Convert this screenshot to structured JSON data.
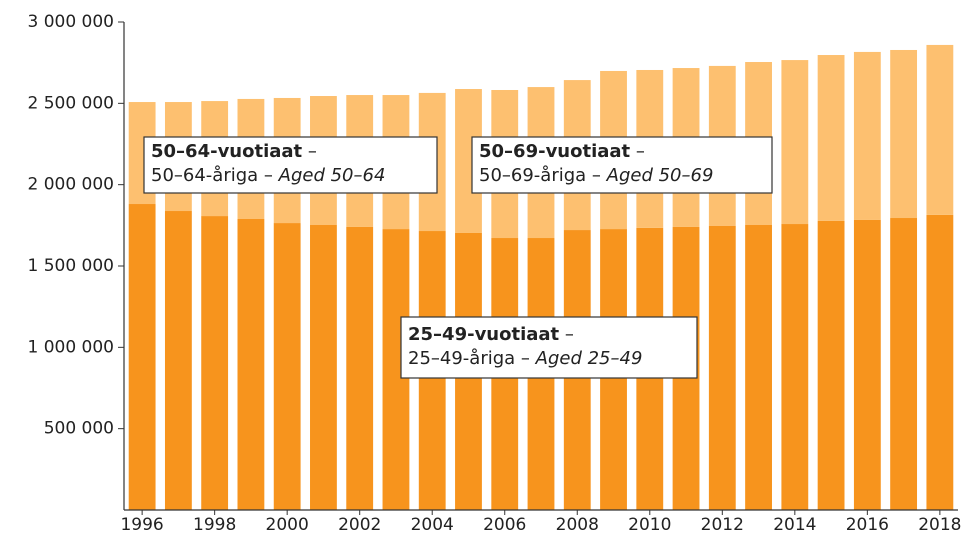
{
  "chart_data": {
    "type": "stacked-bar",
    "categories": [
      "1996",
      null,
      "1998",
      null,
      "2000",
      null,
      "2002",
      null,
      "2004",
      null,
      "2006",
      null,
      "2008",
      null,
      "2010",
      null,
      "2012",
      null,
      "2014",
      null,
      "2016",
      null,
      "2018"
    ],
    "series": [
      {
        "color": "#f7941d",
        "values": [
          1881000,
          1838000,
          1807000,
          1789000,
          1764000,
          1752000,
          1740000,
          1727000,
          1715000,
          1703000,
          1672000,
          1672000,
          1721000,
          1727000,
          1734000,
          1740000,
          1746000,
          1752000,
          1758000,
          1777000,
          1783000,
          1795000,
          1814000
        ]
      },
      {
        "color": "#fdc070",
        "values": [
          627000,
          670000,
          707000,
          738000,
          769000,
          793000,
          811000,
          824000,
          849000,
          885000,
          910000,
          928000,
          922000,
          972000,
          971000,
          977000,
          984000,
          1002000,
          1008000,
          1020000,
          1033000,
          1033000,
          1045000
        ]
      }
    ],
    "ylim": [
      0,
      3000000
    ],
    "yticks": [
      {
        "value": 500000,
        "label": "500 000"
      },
      {
        "value": 1000000,
        "label": "1 000 000"
      },
      {
        "value": 1500000,
        "label": "1 500 000"
      },
      {
        "value": 2000000,
        "label": "2 000 000"
      },
      {
        "value": 2500000,
        "label": "2 500 000"
      },
      {
        "value": 3000000,
        "label": "3 000 000"
      }
    ],
    "annotations": [
      {
        "lines": [
          [
            {
              "text": "50–64-vuotiaat",
              "bold": true
            },
            {
              "text": " –"
            }
          ],
          [
            {
              "text": "50–64-åriga – "
            },
            {
              "text": "Aged 50–64",
              "italic": true
            }
          ]
        ]
      },
      {
        "lines": [
          [
            {
              "text": "50–69-vuotiaat",
              "bold": true
            },
            {
              "text": " –"
            }
          ],
          [
            {
              "text": "50–69-åriga – "
            },
            {
              "text": "Aged 50–69",
              "italic": true
            }
          ]
        ]
      },
      {
        "lines": [
          [
            {
              "text": "25–49-vuotiaat",
              "bold": true
            },
            {
              "text": " –"
            }
          ],
          [
            {
              "text": "25–49-åriga – "
            },
            {
              "text": "Aged 25–49",
              "italic": true
            }
          ]
        ]
      }
    ]
  }
}
